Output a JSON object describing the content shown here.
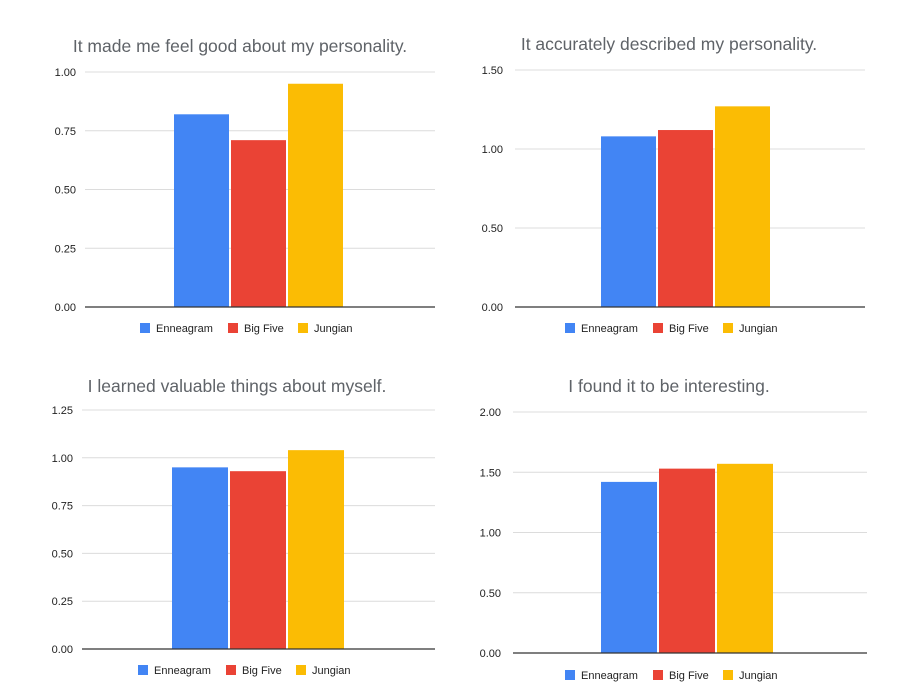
{
  "legend": [
    "Enneagram",
    "Big Five",
    "Jungian"
  ],
  "colors": {
    "Enneagram": "#4285f4",
    "Big Five": "#ea4335",
    "Jungian": "#fbbc04"
  },
  "chart_data": [
    {
      "type": "bar",
      "title": "It made me feel good about my personality.",
      "categories": [
        "Enneagram",
        "Big Five",
        "Jungian"
      ],
      "values": [
        0.82,
        0.71,
        0.95
      ],
      "ylim": [
        0,
        1.0
      ],
      "yticks": [
        "0.00",
        "0.25",
        "0.50",
        "0.75",
        "1.00"
      ],
      "legend_position": "bottom",
      "grid": true
    },
    {
      "type": "bar",
      "title": "It accurately described my personality.",
      "categories": [
        "Enneagram",
        "Big Five",
        "Jungian"
      ],
      "values": [
        1.08,
        1.12,
        1.27
      ],
      "ylim": [
        0,
        1.5
      ],
      "yticks": [
        "0.00",
        "0.50",
        "1.00",
        "1.50"
      ],
      "legend_position": "bottom",
      "grid": true
    },
    {
      "type": "bar",
      "title": "I learned valuable things about myself.",
      "categories": [
        "Enneagram",
        "Big Five",
        "Jungian"
      ],
      "values": [
        0.95,
        0.93,
        1.04
      ],
      "ylim": [
        0,
        1.25
      ],
      "yticks": [
        "0.00",
        "0.25",
        "0.50",
        "0.75",
        "1.00",
        "1.25"
      ],
      "legend_position": "bottom",
      "grid": true
    },
    {
      "type": "bar",
      "title": "I found it to be interesting.",
      "categories": [
        "Enneagram",
        "Big Five",
        "Jungian"
      ],
      "values": [
        1.42,
        1.53,
        1.57
      ],
      "ylim": [
        0,
        2.0
      ],
      "yticks": [
        "0.00",
        "0.50",
        "1.00",
        "1.50",
        "2.00"
      ],
      "legend_position": "bottom",
      "grid": true
    }
  ]
}
